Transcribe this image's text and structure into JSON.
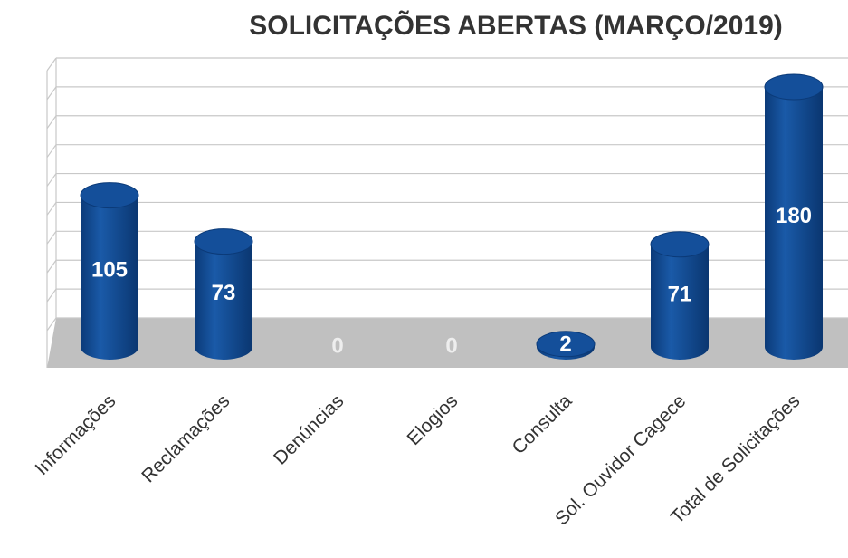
{
  "chart_data": {
    "type": "bar",
    "title": "SOLICITAÇÕES ABERTAS (MARÇO/2019)",
    "categories": [
      "Informações",
      "Reclamações",
      "Denúncias",
      "Elogios",
      "Consulta",
      "Sol. Ouvidor Cagece",
      "Total de Solicitações"
    ],
    "values": [
      105,
      73,
      0,
      0,
      2,
      71,
      180
    ],
    "color": "#144f9a",
    "ylim": [
      0,
      180
    ],
    "yticks": [
      0,
      20,
      40,
      60,
      80,
      100,
      120,
      140,
      160,
      180
    ],
    "grid": true
  }
}
